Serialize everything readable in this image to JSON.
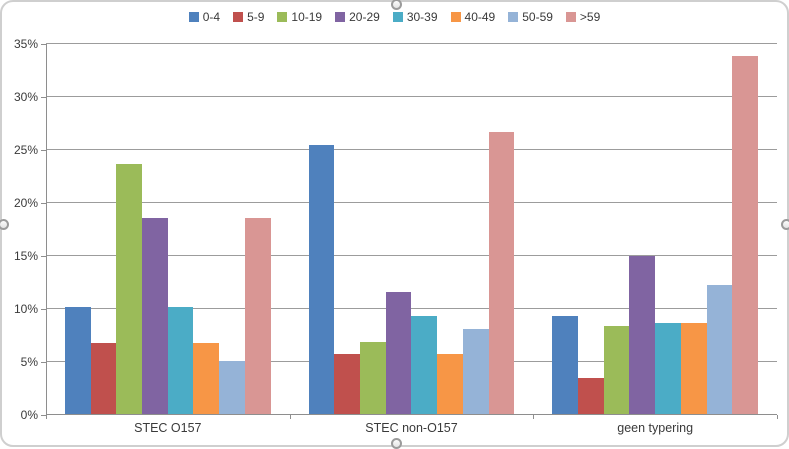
{
  "chart_data": {
    "type": "bar",
    "title": "",
    "xlabel": "",
    "ylabel": "",
    "categories": [
      "STEC O157",
      "STEC non-O157",
      "geen typering"
    ],
    "series": [
      {
        "name": "0-4",
        "color": "#4F81BD",
        "values": [
          10.2,
          25.5,
          9.3
        ]
      },
      {
        "name": "5-9",
        "color": "#C0504D",
        "values": [
          6.8,
          5.8,
          3.5
        ]
      },
      {
        "name": "10-19",
        "color": "#9BBB59",
        "values": [
          23.7,
          6.9,
          8.4
        ]
      },
      {
        "name": "20-29",
        "color": "#8064A2",
        "values": [
          18.6,
          11.6,
          15.0
        ]
      },
      {
        "name": "30-39",
        "color": "#4BACC6",
        "values": [
          10.2,
          9.3,
          8.7
        ]
      },
      {
        "name": "40-49",
        "color": "#F79646",
        "values": [
          6.8,
          5.8,
          8.7
        ]
      },
      {
        "name": "50-59",
        "color": "#95B3D7",
        "values": [
          5.1,
          8.1,
          12.3
        ]
      },
      {
        "name": ">59",
        "color": "#D99694",
        "values": [
          18.6,
          26.7,
          33.9
        ]
      }
    ],
    "ylim": [
      0,
      35
    ],
    "ytick_step": 5,
    "ytick_labels": [
      "0%",
      "5%",
      "10%",
      "15%",
      "20%",
      "25%",
      "30%",
      "35%"
    ],
    "grid": true,
    "legend_position": "top-center",
    "colors": {
      "gridline": "#9c9c9c",
      "axis": "#8e8e8e",
      "text": "#3a3a3a",
      "frame_border": "#cfcfcf"
    }
  },
  "frame": {
    "selection_handles": [
      "top",
      "right",
      "bottom",
      "left"
    ]
  }
}
